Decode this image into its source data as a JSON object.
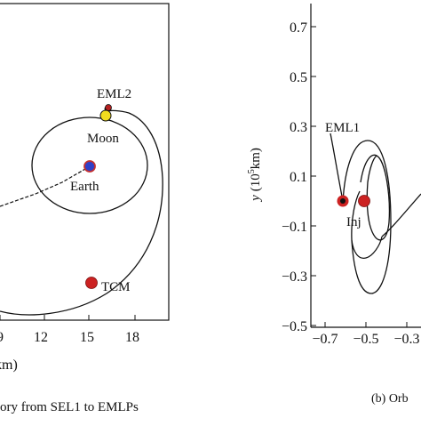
{
  "chart_data": [
    {
      "type": "line",
      "panel": "a",
      "caption": "ory from SEL1 to EMLPs",
      "xlabel": "km)",
      "x_ticks": [
        9,
        12,
        15,
        18
      ],
      "xlim": [
        9,
        20
      ],
      "ylim": [
        -1.5,
        1.0
      ],
      "series": [
        {
          "x": [
            15.4,
            13.0,
            11.2,
            9.5,
            9.3,
            10.2,
            12.5,
            14.5,
            16.2,
            17.1,
            17.3,
            17.0,
            16.3,
            15.7,
            15.9,
            16.3
          ],
          "y": [
            0.33,
            0.45,
            0.4,
            0.2,
            -0.05,
            -0.32,
            -0.5,
            -0.52,
            -0.35,
            0.0,
            0.3,
            0.55,
            0.72,
            0.8,
            0.85,
            0.87
          ]
        },
        {
          "x": [
            9.2,
            10.5,
            12.0,
            13.5,
            14.8
          ],
          "y": [
            -1.0,
            -1.05,
            -1.15,
            -1.25,
            -1.38
          ]
        },
        {
          "x": [
            8.0,
            9.5,
            11.0,
            12.8,
            15.3,
            17.5,
            18.3,
            17.8,
            16.4,
            15.4
          ],
          "y": [
            -0.2,
            -0.55,
            -0.65,
            -0.6,
            -0.4,
            0.0,
            0.35,
            0.65,
            0.85,
            0.9
          ]
        }
      ],
      "points": [
        {
          "label": "EML2",
          "x": 15.9,
          "y": 0.95,
          "color": "#b52020"
        },
        {
          "label": "Moon",
          "x": 15.7,
          "y": 0.87,
          "color": "#f2dc1e"
        },
        {
          "label": "Earth",
          "x": 14.8,
          "y": 0.25,
          "color": "#2f3fc8"
        },
        {
          "label": "TCM",
          "x": 14.8,
          "y": -0.52,
          "color": "#cc2222"
        }
      ]
    },
    {
      "type": "line",
      "panel": "b",
      "caption": "(b) Orb",
      "ylabel": "y (10⁵km)",
      "x_ticks": [
        "−0.7",
        "−0.5",
        "−0.3"
      ],
      "y_ticks": [
        "0.7",
        "0.5",
        "0.3",
        "0.1",
        "−0.1",
        "−0.3",
        "−0.5"
      ],
      "xlim": [
        -0.75,
        -0.25
      ],
      "ylim": [
        -0.5,
        0.8
      ],
      "series": [
        {
          "name": "",
          "x": [
            -0.61,
            -0.58,
            -0.54,
            -0.5,
            -0.47,
            -0.455,
            -0.45,
            -0.46,
            -0.48,
            -0.5,
            -0.53,
            -0.56,
            -0.57,
            -0.55
          ],
          "y": [
            -0.02,
            0.12,
            0.22,
            0.23,
            0.15,
            0.03,
            -0.12,
            -0.25,
            -0.32,
            -0.3,
            -0.22,
            -0.1,
            0.02,
            0.12
          ]
        },
        {
          "x": [
            -0.55,
            -0.51,
            -0.47,
            -0.44,
            -0.43,
            -0.44,
            -0.47,
            -0.5,
            -0.52,
            -0.52,
            -0.5,
            -0.48
          ],
          "y": [
            0.15,
            0.21,
            0.18,
            0.08,
            -0.06,
            -0.15,
            -0.18,
            -0.12,
            0.0,
            0.12,
            0.19,
            0.21
          ]
        },
        {
          "x": [
            -0.64,
            -0.62,
            -0.6,
            -0.58
          ],
          "y": [
            0.32,
            0.18,
            0.05,
            -0.02
          ]
        },
        {
          "x": [
            -0.45,
            -0.4,
            -0.35,
            -0.3,
            -0.27
          ],
          "y": [
            -0.12,
            -0.08,
            -0.02,
            0.05,
            0.09
          ]
        }
      ],
      "points": [
        {
          "label": "EML1",
          "x": -0.605,
          "y": 0.0,
          "color": "#111111"
        },
        {
          "label": "Inj",
          "x": -0.51,
          "y": 0.0,
          "color": "#cc2222"
        }
      ]
    }
  ],
  "labels": {
    "eml2": "EML2",
    "moon": "Moon",
    "earth": "Earth",
    "tcm": "TCM",
    "eml1": "EML1",
    "inj": "Inj",
    "ylabel_italic": "y",
    "ylabel_rest": "(10",
    "ylabel_exp": "5",
    "ylabel_unit": "km)"
  }
}
